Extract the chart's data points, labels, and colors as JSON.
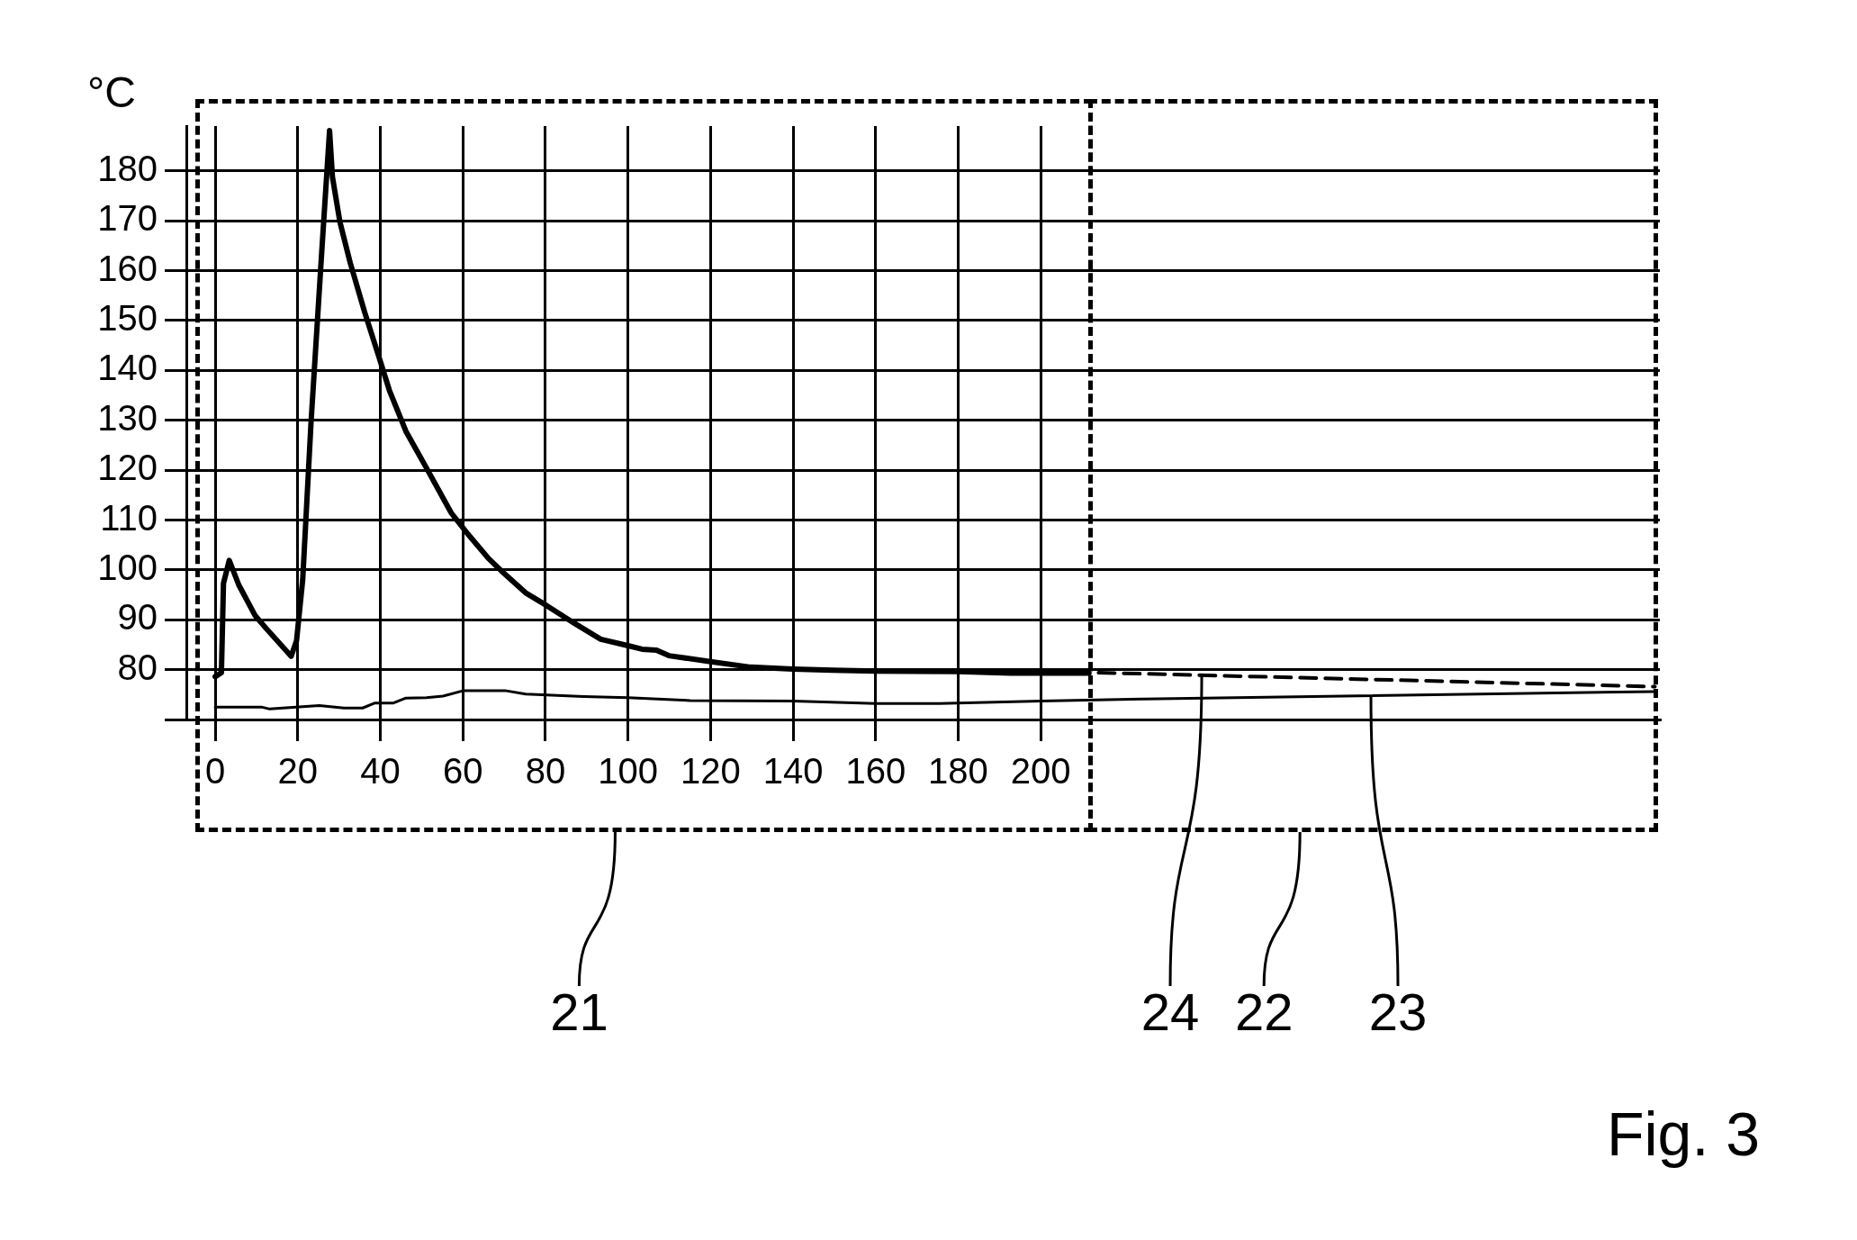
{
  "chart_data": {
    "type": "line",
    "ylabel": "°C",
    "xlim": [
      -7,
      350
    ],
    "ylim": [
      70,
      189
    ],
    "xticks": [
      0,
      20,
      40,
      60,
      80,
      100,
      120,
      140,
      160,
      180,
      200
    ],
    "yticks": [
      {
        "value": 70,
        "label": null
      },
      80,
      90,
      100,
      110,
      120,
      130,
      140,
      150,
      160,
      170,
      180
    ],
    "grid": true,
    "legend": false,
    "marker": "none",
    "series": [
      {
        "color": "#000000",
        "line_style": "solid",
        "x": [
          0,
          1.5,
          2,
          3.4,
          5.7,
          9.7,
          12.2,
          18.4,
          19.7,
          21.2,
          23.2,
          25.7,
          27.7,
          28.4,
          30.2,
          32.7,
          36.2,
          39.7,
          42.2,
          46.2,
          51.2,
          57.2,
          61.2,
          66.2,
          69.2,
          75.2,
          80.2,
          87.2,
          93.4,
          100,
          103.4,
          106.9,
          109.9,
          120,
          129.7,
          140,
          149.6,
          160,
          180,
          192.7,
          211.7
        ],
        "values": [
          78.6,
          79.4,
          97.3,
          101.9,
          97,
          90.8,
          88.4,
          82.7,
          85.8,
          98.1,
          129.4,
          162.4,
          188.1,
          178.8,
          169.8,
          161.6,
          151.7,
          142.6,
          136,
          127.8,
          120.4,
          111.4,
          107.2,
          102.3,
          99.9,
          95.4,
          92.9,
          89.2,
          86.1,
          84.8,
          84.1,
          83.9,
          82.8,
          81.6,
          80.5,
          80.1,
          79.9,
          79.7,
          79.6,
          79.3,
          79.3
        ]
      },
      {
        "color": "#000000",
        "line_style": "dashed",
        "x": [
          214,
          348.8
        ],
        "values": [
          79.4,
          76.6
        ]
      },
      {
        "color": "#000000",
        "line_style": "solid",
        "x": [
          0,
          11.2,
          13.2,
          25.2,
          31.2,
          35.7,
          38.7,
          43.2,
          46.2,
          51.2,
          55.2,
          60.2,
          70.2,
          75.2,
          89.2,
          100,
          115.1,
          140,
          160,
          175.4,
          200,
          224.4,
          348.8
        ],
        "values": [
          72.5,
          72.5,
          72.1,
          72.8,
          72.3,
          72.3,
          73.3,
          73.3,
          74.3,
          74.4,
          74.7,
          75.8,
          75.8,
          75.1,
          74.6,
          74.4,
          73.8,
          73.7,
          73.2,
          73.2,
          73.7,
          74.1,
          75.6
        ]
      }
    ],
    "annotations": [
      "21",
      "22",
      {
        "text": "23",
        "x": 280,
        "y": 74.6
      },
      {
        "text": "24",
        "x": 239,
        "y": 78.9
      },
      "Fig. 3"
    ]
  }
}
